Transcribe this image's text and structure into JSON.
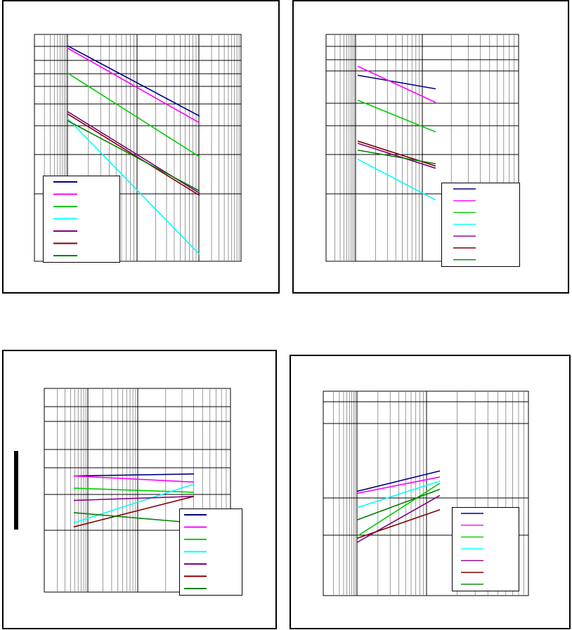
{
  "chart_data": [
    {
      "type": "line",
      "panel": "top-left",
      "x_scale": "log",
      "y_scale": "log",
      "grid": true,
      "legend_position": "bottom-left",
      "series": [
        {
          "color": "#000080",
          "points": [
            [
              1,
              0.95
            ],
            [
              100,
              0.64
            ]
          ]
        },
        {
          "color": "#ff00ff",
          "points": [
            [
              1,
              0.94
            ],
            [
              100,
              0.61
            ]
          ]
        },
        {
          "color": "#00cc00",
          "points": [
            [
              1,
              0.83
            ],
            [
              100,
              0.46
            ]
          ]
        },
        {
          "color": "#00ffff",
          "points": [
            [
              1,
              0.63
            ],
            [
              100,
              0.03
            ]
          ]
        },
        {
          "color": "#800080",
          "points": [
            [
              1,
              0.66
            ],
            [
              100,
              0.3
            ]
          ]
        },
        {
          "color": "#800000",
          "points": [
            [
              1,
              0.65
            ],
            [
              100,
              0.29
            ]
          ]
        },
        {
          "color": "#008000",
          "points": [
            [
              1,
              0.62
            ],
            [
              100,
              0.31
            ]
          ]
        }
      ]
    },
    {
      "type": "line",
      "panel": "top-right",
      "x_scale": "log",
      "y_scale": "log",
      "grid": true,
      "legend_position": "bottom-right",
      "series": [
        {
          "color": "#000080",
          "points": [
            [
              1,
              0.82
            ],
            [
              10,
              0.76
            ]
          ]
        },
        {
          "color": "#ff00ff",
          "points": [
            [
              1,
              0.86
            ],
            [
              10,
              0.7
            ]
          ]
        },
        {
          "color": "#00cc00",
          "points": [
            [
              1,
              0.71
            ],
            [
              10,
              0.57
            ]
          ]
        },
        {
          "color": "#00ffff",
          "points": [
            [
              1,
              0.45
            ],
            [
              10,
              0.27
            ]
          ]
        },
        {
          "color": "#800080",
          "points": [
            [
              1,
              0.52
            ],
            [
              10,
              0.41
            ]
          ]
        },
        {
          "color": "#800000",
          "points": [
            [
              1,
              0.53
            ],
            [
              10,
              0.42
            ]
          ]
        },
        {
          "color": "#008000",
          "points": [
            [
              1,
              0.49
            ],
            [
              10,
              0.43
            ]
          ]
        }
      ]
    },
    {
      "type": "line",
      "panel": "bottom-left",
      "x_scale": "log",
      "y_scale": "log",
      "grid": true,
      "legend_position": "bottom-right",
      "series": [
        {
          "color": "#000080",
          "points": [
            [
              1,
              0.57
            ],
            [
              100,
              0.58
            ]
          ]
        },
        {
          "color": "#ff00ff",
          "points": [
            [
              1,
              0.57
            ],
            [
              100,
              0.54
            ]
          ]
        },
        {
          "color": "#00cc00",
          "points": [
            [
              1,
              0.51
            ],
            [
              100,
              0.49
            ]
          ]
        },
        {
          "color": "#00ffff",
          "points": [
            [
              1,
              0.34
            ],
            [
              100,
              0.53
            ]
          ]
        },
        {
          "color": "#800080",
          "points": [
            [
              1,
              0.45
            ],
            [
              100,
              0.47
            ]
          ]
        },
        {
          "color": "#800000",
          "points": [
            [
              1,
              0.32
            ],
            [
              100,
              0.47
            ]
          ]
        },
        {
          "color": "#008000",
          "points": [
            [
              1,
              0.39
            ],
            [
              100,
              0.34
            ]
          ]
        }
      ]
    },
    {
      "type": "line",
      "panel": "bottom-right",
      "x_scale": "log",
      "y_scale": "log",
      "grid": true,
      "legend_position": "bottom-right",
      "series": [
        {
          "color": "#000080",
          "points": [
            [
              1,
              0.51
            ],
            [
              10,
              0.61
            ]
          ]
        },
        {
          "color": "#ff00ff",
          "points": [
            [
              1,
              0.5
            ],
            [
              10,
              0.58
            ]
          ]
        },
        {
          "color": "#00cc00",
          "points": [
            [
              1,
              0.29
            ],
            [
              10,
              0.55
            ]
          ]
        },
        {
          "color": "#00ffff",
          "points": [
            [
              1,
              0.43
            ],
            [
              10,
              0.56
            ]
          ]
        },
        {
          "color": "#800080",
          "points": [
            [
              1,
              0.26
            ],
            [
              10,
              0.49
            ]
          ]
        },
        {
          "color": "#800000",
          "points": [
            [
              1,
              0.28
            ],
            [
              10,
              0.42
            ]
          ]
        },
        {
          "color": "#008000",
          "points": [
            [
              1,
              0.37
            ],
            [
              10,
              0.52
            ]
          ]
        }
      ]
    }
  ]
}
